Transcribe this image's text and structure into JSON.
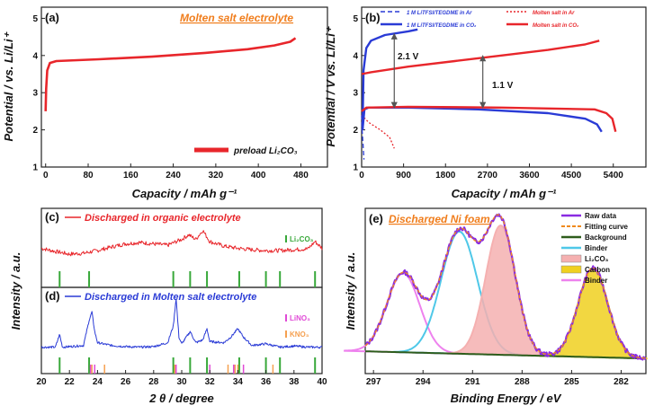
{
  "chart_data": [
    {
      "panel": "(a)",
      "type": "line",
      "title": "Molten salt electrolyte",
      "xlabel": "Capacity / mAh g⁻¹",
      "ylabel": "Potential / vs. Li/Li⁺",
      "xlim": [
        -8,
        530
      ],
      "ylim": [
        1,
        5.3
      ],
      "xticks": [
        0,
        80,
        160,
        240,
        320,
        400,
        480
      ],
      "yticks": [
        1,
        2,
        3,
        4,
        5
      ],
      "series": [
        {
          "name": "preload Li₂CO₃",
          "color": "#e8262b",
          "points": [
            [
              0,
              2.5
            ],
            [
              1,
              3.1
            ],
            [
              3,
              3.6
            ],
            [
              8,
              3.8
            ],
            [
              20,
              3.85
            ],
            [
              100,
              3.9
            ],
            [
              200,
              3.97
            ],
            [
              300,
              4.07
            ],
            [
              380,
              4.17
            ],
            [
              430,
              4.27
            ],
            [
              460,
              4.37
            ],
            [
              470,
              4.47
            ]
          ]
        }
      ]
    },
    {
      "panel": "(b)",
      "type": "line",
      "xlabel": "Capacity / mAh g⁻¹",
      "ylabel": "Potential / V vs. Li/Li⁺",
      "xlim": [
        0,
        6100
      ],
      "ylim": [
        1,
        5.3
      ],
      "xticks": [
        0,
        900,
        1800,
        2700,
        3600,
        4500,
        5400
      ],
      "yticks": [
        1,
        2,
        3,
        4,
        5
      ],
      "annotations": [
        "2.1 V",
        "1.1 V"
      ],
      "series": [
        {
          "name": "1 M LiTFSI/TEGDME in Ar",
          "color": "#2a3bd6",
          "dash": "5,3",
          "points": [
            [
              0,
              2.4
            ],
            [
              10,
              2.0
            ],
            [
              30,
              1.6
            ],
            [
              50,
              1.2
            ]
          ]
        },
        {
          "name": "Molten salt in Ar",
          "color": "#e8262b",
          "dash": "2,2",
          "points": [
            [
              0,
              2.4
            ],
            [
              150,
              2.2
            ],
            [
              400,
              2.0
            ],
            [
              600,
              1.8
            ],
            [
              700,
              1.5
            ]
          ]
        },
        {
          "name": "1 M LiTFSI/TEGDME in CO₂",
          "color": "#2a3bd6",
          "points": [
            [
              20,
              2.0
            ],
            [
              60,
              2.55
            ],
            [
              150,
              2.6
            ],
            [
              1000,
              2.6
            ],
            [
              2500,
              2.55
            ],
            [
              4000,
              2.45
            ],
            [
              4800,
              2.3
            ],
            [
              5050,
              2.15
            ],
            [
              5150,
              1.95
            ]
          ]
        },
        {
          "name": "1 M LiTFSI/TEGDME in CO₂",
          "color": "#2a3bd6",
          "points": [
            [
              20,
              2.0
            ],
            [
              40,
              3.6
            ],
            [
              100,
              4.2
            ],
            [
              200,
              4.4
            ],
            [
              500,
              4.55
            ],
            [
              1000,
              4.65
            ],
            [
              1200,
              4.7
            ]
          ]
        },
        {
          "name": "Molten salt in CO₂",
          "color": "#e8262b",
          "points": [
            [
              0,
              2.5
            ],
            [
              100,
              2.6
            ],
            [
              1000,
              2.62
            ],
            [
              3000,
              2.6
            ],
            [
              5000,
              2.55
            ],
            [
              5250,
              2.45
            ],
            [
              5380,
              2.3
            ],
            [
              5450,
              1.95
            ]
          ]
        },
        {
          "name": "Molten salt in CO₂",
          "color": "#e8262b",
          "points": [
            [
              0,
              3.5
            ],
            [
              200,
              3.55
            ],
            [
              1000,
              3.7
            ],
            [
              2000,
              3.85
            ],
            [
              3000,
              4.0
            ],
            [
              4000,
              4.15
            ],
            [
              4800,
              4.3
            ],
            [
              5100,
              4.4
            ]
          ]
        }
      ]
    },
    {
      "panel": "(c)",
      "type": "line",
      "title": "Discharged in organic electrolyte",
      "xlabel": "2 θ / degree",
      "ylabel": "Intensity / a.u.",
      "xlim": [
        20,
        40
      ],
      "legend_ref": "Li₂CO₃",
      "ref_color": "#38a83a",
      "ref_peaks": [
        21.3,
        23.4,
        29.4,
        30.6,
        31.8,
        34.1,
        36.0,
        37.0,
        39.5
      ],
      "series": [
        {
          "name": "Discharged in organic electrolyte",
          "color": "#e8262b",
          "points": [
            [
              20,
              0.35
            ],
            [
              21,
              0.28
            ],
            [
              22,
              0.22
            ],
            [
              23,
              0.24
            ],
            [
              24,
              0.3
            ],
            [
              25,
              0.38
            ],
            [
              26,
              0.45
            ],
            [
              27,
              0.48
            ],
            [
              28,
              0.45
            ],
            [
              29,
              0.42
            ],
            [
              30,
              0.55
            ],
            [
              30.5,
              0.65
            ],
            [
              31,
              0.55
            ],
            [
              31.5,
              0.75
            ],
            [
              32,
              0.5
            ],
            [
              33,
              0.4
            ],
            [
              34,
              0.35
            ],
            [
              35,
              0.32
            ],
            [
              36,
              0.3
            ],
            [
              37,
              0.3
            ],
            [
              38,
              0.32
            ],
            [
              39,
              0.34
            ],
            [
              39.5,
              0.5
            ],
            [
              40,
              0.35
            ]
          ]
        }
      ]
    },
    {
      "panel": "(d)",
      "type": "line",
      "title": "Discharged in Molten salt electrolyte",
      "xlabel": "2 θ / degree",
      "ylabel": "Intensity / a.u.",
      "xlim": [
        20,
        40
      ],
      "xticks": [
        20,
        22,
        24,
        26,
        28,
        30,
        32,
        34,
        36,
        38,
        40
      ],
      "legend_refs": [
        {
          "name": "LiNO₃",
          "color": "#e04ad6",
          "peaks": [
            23.5,
            23.8,
            29.6,
            32.0,
            33.7,
            34.4
          ]
        },
        {
          "name": "KNO₃",
          "color": "#f5a050",
          "peaks": [
            23.6,
            24.5,
            29.5,
            33.3,
            33.8,
            34.0,
            36.5
          ]
        }
      ],
      "ref_peaks_li2co3": [
        21.3,
        23.4,
        29.4,
        30.6,
        31.8,
        34.1,
        36.0,
        37.0,
        39.5
      ],
      "series": [
        {
          "name": "Discharged in Molten salt electrolyte",
          "color": "#2a3bd6",
          "points": [
            [
              20,
              0.12
            ],
            [
              21,
              0.12
            ],
            [
              21.3,
              0.35
            ],
            [
              21.5,
              0.12
            ],
            [
              22,
              0.13
            ],
            [
              23,
              0.15
            ],
            [
              23.4,
              0.6
            ],
            [
              23.6,
              0.75
            ],
            [
              23.8,
              0.4
            ],
            [
              24,
              0.2
            ],
            [
              25,
              0.15
            ],
            [
              26,
              0.13
            ],
            [
              27,
              0.12
            ],
            [
              28,
              0.13
            ],
            [
              29,
              0.2
            ],
            [
              29.4,
              0.5
            ],
            [
              29.6,
              1.0
            ],
            [
              29.8,
              0.3
            ],
            [
              30,
              0.18
            ],
            [
              30.6,
              0.4
            ],
            [
              31,
              0.2
            ],
            [
              31.5,
              0.25
            ],
            [
              31.8,
              0.45
            ],
            [
              32,
              0.22
            ],
            [
              33,
              0.2
            ],
            [
              33.5,
              0.3
            ],
            [
              34,
              0.45
            ],
            [
              34.4,
              0.3
            ],
            [
              35,
              0.15
            ],
            [
              36,
              0.18
            ],
            [
              37,
              0.12
            ],
            [
              38,
              0.14
            ],
            [
              39,
              0.12
            ],
            [
              40,
              0.12
            ]
          ]
        }
      ]
    },
    {
      "panel": "(e)",
      "type": "area",
      "title": "Discharged Ni foam",
      "xlabel": "Binding Energy / eV",
      "ylabel": "Intensity / a.u.",
      "xlim": [
        297.5,
        280.5
      ],
      "xticks": [
        297,
        294,
        291,
        288,
        285,
        282
      ],
      "legend": [
        "Raw data",
        "Fitting curve",
        "Background",
        "Binder",
        "Li₂CO₃",
        "Carbon",
        "Binder"
      ],
      "legend_colors": [
        "#8a2be2",
        "#f08a1c",
        "#2e5d1c",
        "#4fc8e8",
        "#f5b0b0",
        "#f0d020",
        "#ee82ee"
      ],
      "peaks": [
        {
          "name": "Binder",
          "center": 295.2,
          "height": 0.55,
          "width": 1.0,
          "color": "#ee82ee"
        },
        {
          "name": "Binder",
          "center": 291.8,
          "height": 0.85,
          "width": 1.1,
          "color": "#4fc8e8"
        },
        {
          "name": "Li₂CO₃",
          "center": 289.3,
          "height": 0.9,
          "width": 0.9,
          "color": "#f5b0b0"
        },
        {
          "name": "Carbon",
          "center": 283.7,
          "height": 0.62,
          "width": 0.9,
          "color": "#f0d020"
        }
      ],
      "background": {
        "left": 0.08,
        "right": 0.03
      }
    }
  ]
}
